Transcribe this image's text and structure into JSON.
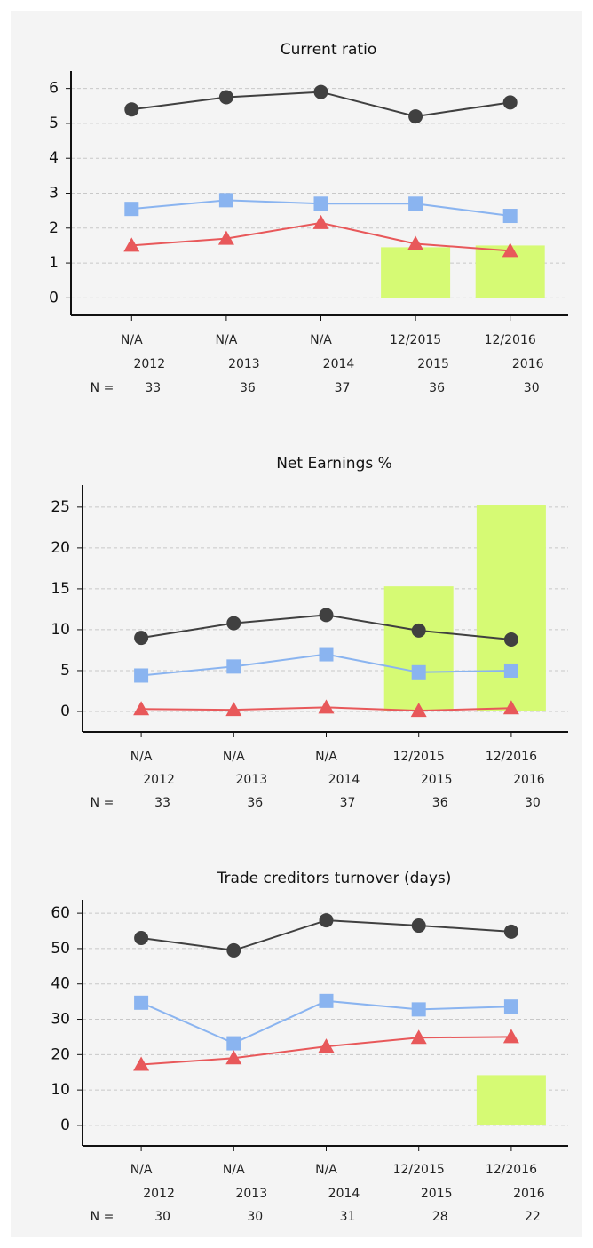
{
  "chart_data": [
    {
      "type": "line",
      "title": "Current ratio",
      "periods": [
        "N/A",
        "N/A",
        "N/A",
        "12/2015",
        "12/2016"
      ],
      "categories": [
        "2012",
        "2013",
        "2014",
        "2015",
        "2016"
      ],
      "n_label": "N =",
      "n_values": [
        33,
        36,
        37,
        36,
        30
      ],
      "series": [
        {
          "color": "#404040",
          "marker": "circle",
          "values": [
            5.4,
            5.75,
            5.9,
            5.2,
            5.6
          ]
        },
        {
          "color": "#8ab4f0",
          "marker": "square",
          "values": [
            2.55,
            2.8,
            2.7,
            2.7,
            2.35
          ]
        },
        {
          "color": "#e8585a",
          "marker": "triangle",
          "values": [
            1.5,
            1.7,
            2.15,
            1.55,
            1.35
          ]
        }
      ],
      "bars": {
        "color": "#d6fa74",
        "values": [
          null,
          null,
          null,
          1.45,
          1.5
        ]
      },
      "ylim": [
        -0.5,
        6.5
      ],
      "yticks": [
        0,
        1,
        2,
        3,
        4,
        5,
        6
      ],
      "grid": true
    },
    {
      "type": "line",
      "title": "Net Earnings %",
      "periods": [
        "N/A",
        "N/A",
        "N/A",
        "12/2015",
        "12/2016"
      ],
      "categories": [
        "2012",
        "2013",
        "2014",
        "2015",
        "2016"
      ],
      "n_label": "N =",
      "n_values": [
        33,
        36,
        37,
        36,
        30
      ],
      "series": [
        {
          "color": "#404040",
          "marker": "circle",
          "values": [
            9,
            10.8,
            11.8,
            9.9,
            8.8
          ]
        },
        {
          "color": "#8ab4f0",
          "marker": "square",
          "values": [
            4.4,
            5.5,
            7,
            4.8,
            5
          ]
        },
        {
          "color": "#e8585a",
          "marker": "triangle",
          "values": [
            0.3,
            0.2,
            0.5,
            0.1,
            0.4
          ]
        }
      ],
      "bars": {
        "color": "#d6fa74",
        "values": [
          null,
          null,
          null,
          15.3,
          25.2
        ]
      },
      "ylim": [
        -2.5,
        27.7
      ],
      "yticks": [
        0,
        5,
        10,
        15,
        20,
        25
      ],
      "grid": true
    },
    {
      "type": "line",
      "title": "Trade creditors turnover (days)",
      "periods": [
        "N/A",
        "N/A",
        "N/A",
        "12/2015",
        "12/2016"
      ],
      "categories": [
        "2012",
        "2013",
        "2014",
        "2015",
        "2016"
      ],
      "n_label": "N =",
      "n_values": [
        30,
        30,
        31,
        28,
        22
      ],
      "series": [
        {
          "color": "#404040",
          "marker": "circle",
          "values": [
            53,
            49.5,
            58,
            56.5,
            54.8
          ]
        },
        {
          "color": "#8ab4f0",
          "marker": "square",
          "values": [
            34.7,
            23.2,
            35.2,
            32.8,
            33.6
          ]
        },
        {
          "color": "#e8585a",
          "marker": "triangle",
          "values": [
            17.2,
            19,
            22.3,
            24.8,
            25
          ]
        }
      ],
      "bars": {
        "color": "#d6fa74",
        "values": [
          null,
          null,
          null,
          null,
          14.2
        ]
      },
      "ylim": [
        -5.8,
        63.8
      ],
      "yticks": [
        0,
        10,
        20,
        30,
        40,
        50,
        60
      ],
      "grid": true
    }
  ]
}
